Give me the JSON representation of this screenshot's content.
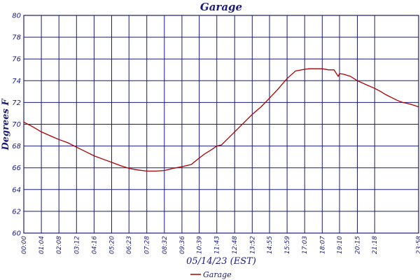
{
  "chart_data": {
    "type": "line",
    "title": "Garage",
    "xlabel": "05/14/23 (EST)",
    "ylabel": "Degrees F",
    "ylim": [
      60,
      80
    ],
    "yticks": [
      60,
      62,
      64,
      66,
      68,
      70,
      72,
      74,
      76,
      78,
      80
    ],
    "xlim": [
      0,
      1438
    ],
    "xtick_labels": [
      "00:00",
      "01:04",
      "02:08",
      "03:12",
      "04:16",
      "05:20",
      "06:23",
      "07:28",
      "08:32",
      "09:36",
      "10:39",
      "11:43",
      "12:48",
      "13:52",
      "14:55",
      "15:59",
      "17:03",
      "18:07",
      "19:10",
      "20:15",
      "21:18",
      "23:58"
    ],
    "xtick_minutes": [
      0,
      64,
      128,
      192,
      256,
      320,
      383,
      448,
      512,
      576,
      639,
      703,
      768,
      832,
      895,
      959,
      1023,
      1087,
      1150,
      1215,
      1278,
      1438
    ],
    "grid": true,
    "legend_position": "bottom-center",
    "colors": {
      "series": "#aa0000",
      "grid": "#1a1a7a",
      "text": "#1a1a7a"
    },
    "series": [
      {
        "name": "Garage",
        "x": [
          0,
          30,
          64,
          100,
          128,
          160,
          192,
          224,
          256,
          288,
          320,
          352,
          383,
          415,
          448,
          480,
          512,
          544,
          576,
          610,
          639,
          660,
          680,
          703,
          720,
          740,
          768,
          800,
          832,
          864,
          895,
          925,
          959,
          990,
          1023,
          1040,
          1055,
          1087,
          1110,
          1130,
          1145,
          1150,
          1165,
          1190,
          1215,
          1250,
          1278,
          1300,
          1320,
          1340,
          1360,
          1380,
          1400,
          1420,
          1438
        ],
        "y": [
          70.2,
          69.8,
          69.3,
          68.9,
          68.6,
          68.3,
          67.9,
          67.5,
          67.1,
          66.8,
          66.5,
          66.2,
          65.95,
          65.8,
          65.7,
          65.7,
          65.75,
          65.95,
          66.1,
          66.3,
          66.9,
          67.3,
          67.6,
          68.0,
          68.1,
          68.6,
          69.3,
          70.1,
          70.9,
          71.6,
          72.4,
          73.2,
          74.2,
          74.9,
          75.05,
          75.1,
          75.1,
          75.1,
          75.0,
          75.0,
          74.4,
          74.65,
          74.6,
          74.4,
          74.0,
          73.6,
          73.3,
          73.0,
          72.7,
          72.45,
          72.2,
          72.0,
          71.9,
          71.75,
          71.6
        ]
      }
    ]
  }
}
